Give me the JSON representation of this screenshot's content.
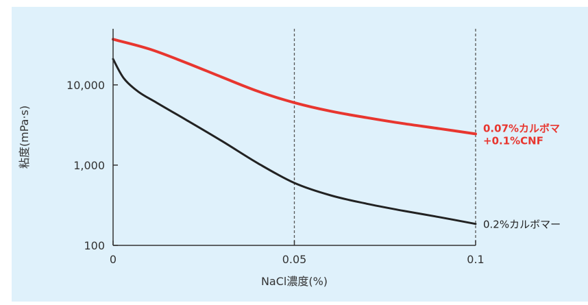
{
  "chart_data": {
    "type": "line",
    "xlabel": "NaCl濃度(%)",
    "ylabel": "粘度(mPa·s)",
    "xlim": [
      0,
      0.1
    ],
    "ylim": [
      100,
      50000
    ],
    "yscale": "log",
    "x_ticks": [
      {
        "value": 0,
        "label": "0"
      },
      {
        "value": 0.05,
        "label": "0.05"
      },
      {
        "value": 0.1,
        "label": "0.1"
      }
    ],
    "y_ticks": [
      {
        "value": 100,
        "label": "100"
      },
      {
        "value": 1000,
        "label": "1,000"
      },
      {
        "value": 10000,
        "label": "10,000"
      }
    ],
    "reference_lines_x": [
      0.05,
      0.1
    ],
    "series": [
      {
        "name_lines": [
          "0.07%カルボマ",
          "+0.1%CNF"
        ],
        "color": "#e8362f",
        "x": [
          0,
          0.01,
          0.02,
          0.03,
          0.04,
          0.05,
          0.06,
          0.07,
          0.08,
          0.09,
          0.1
        ],
        "y": [
          37000,
          28000,
          19000,
          12500,
          8300,
          6000,
          4700,
          3900,
          3300,
          2850,
          2450
        ]
      },
      {
        "name_lines": [
          "0.2%カルボマー"
        ],
        "color": "#222222",
        "x": [
          0,
          0.003,
          0.007,
          0.012,
          0.02,
          0.03,
          0.04,
          0.05,
          0.06,
          0.07,
          0.08,
          0.09,
          0.1
        ],
        "y": [
          21000,
          12000,
          8200,
          6000,
          3700,
          2000,
          1050,
          600,
          420,
          330,
          270,
          225,
          185
        ]
      }
    ]
  }
}
